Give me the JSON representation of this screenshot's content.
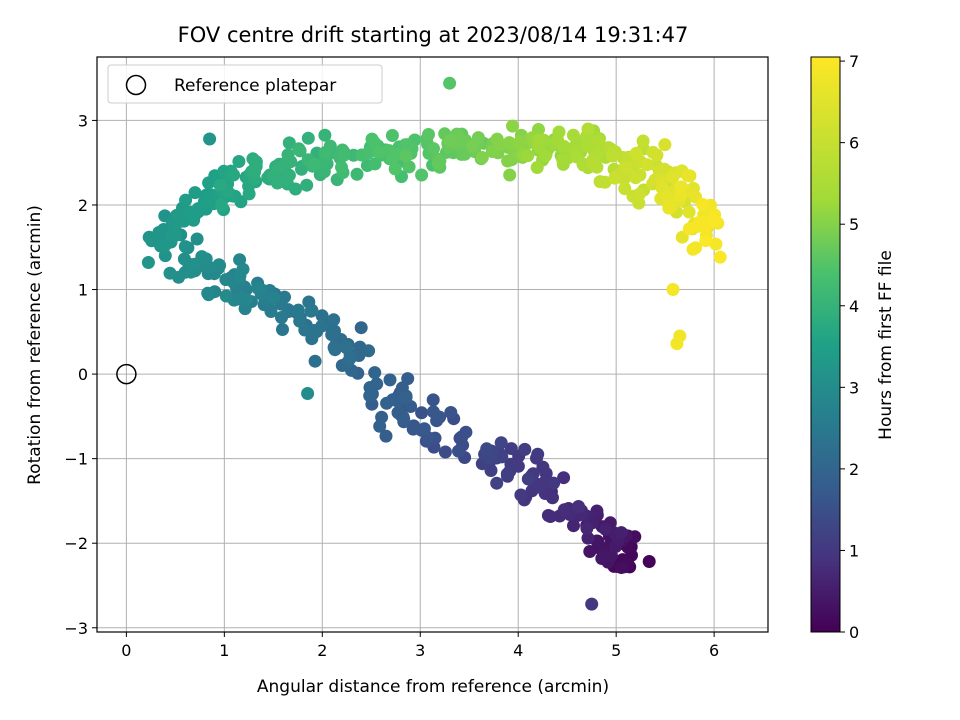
{
  "chart_data": {
    "type": "scatter",
    "title": "FOV centre drift starting at 2023/08/14 19:31:47",
    "xlabel": "Angular distance from reference (arcmin)",
    "ylabel": "Rotation from reference (arcmin)",
    "xlim": [
      -0.3,
      6.55
    ],
    "ylim": [
      -3.05,
      3.75
    ],
    "xticks": [
      0,
      1,
      2,
      3,
      4,
      5,
      6
    ],
    "yticks": [
      -3,
      -2,
      -1,
      0,
      1,
      2,
      3
    ],
    "xtick_labels": [
      "0",
      "1",
      "2",
      "3",
      "4",
      "5",
      "6"
    ],
    "ytick_labels": [
      "−3",
      "−2",
      "−1",
      "0",
      "1",
      "2",
      "3"
    ],
    "grid": true,
    "colormap": "viridis",
    "colorbar": {
      "label": "Hours from first FF file",
      "range": [
        0,
        7.05
      ],
      "ticks": [
        0,
        1,
        2,
        3,
        4,
        5,
        6,
        7
      ],
      "tick_labels": [
        "0",
        "1",
        "2",
        "3",
        "4",
        "5",
        "6",
        "7"
      ]
    },
    "legend": {
      "position": "top-left",
      "entries": [
        "Reference platepar"
      ]
    },
    "reference_point": {
      "x": 0,
      "y": 0
    },
    "series": [
      {
        "segments": [
          {
            "t0": 0.0,
            "t1": 0.55,
            "x0": 5.2,
            "y0": -2.3,
            "x1": 4.8,
            "y1": -1.8,
            "n": 40,
            "sx": 0.22,
            "sy": 0.25
          },
          {
            "t0": 0.55,
            "t1": 1.2,
            "x0": 4.8,
            "y0": -1.8,
            "x1": 3.8,
            "y1": -1.0,
            "n": 55,
            "sx": 0.22,
            "sy": 0.25
          },
          {
            "t0": 1.2,
            "t1": 1.8,
            "x0": 3.8,
            "y0": -1.0,
            "x1": 2.8,
            "y1": -0.4,
            "n": 40,
            "sx": 0.2,
            "sy": 0.25
          },
          {
            "t0": 1.8,
            "t1": 2.3,
            "x0": 2.8,
            "y0": -0.4,
            "x1": 2.0,
            "y1": 0.5,
            "n": 40,
            "sx": 0.22,
            "sy": 0.25
          },
          {
            "t0": 2.3,
            "t1": 2.8,
            "x0": 2.0,
            "y0": 0.5,
            "x1": 1.1,
            "y1": 1.1,
            "n": 45,
            "sx": 0.22,
            "sy": 0.2
          },
          {
            "t0": 2.8,
            "t1": 3.2,
            "x0": 1.1,
            "y0": 1.1,
            "x1": 0.35,
            "y1": 1.6,
            "n": 45,
            "sx": 0.15,
            "sy": 0.25
          },
          {
            "t0": 3.2,
            "t1": 3.5,
            "x0": 0.35,
            "y0": 1.6,
            "x1": 0.9,
            "y1": 2.2,
            "n": 35,
            "sx": 0.15,
            "sy": 0.2
          },
          {
            "t0": 3.5,
            "t1": 4.1,
            "x0": 0.9,
            "y0": 2.2,
            "x1": 2.0,
            "y1": 2.5,
            "n": 80,
            "sx": 0.25,
            "sy": 0.22
          },
          {
            "t0": 4.1,
            "t1": 4.7,
            "x0": 2.0,
            "y0": 2.5,
            "x1": 3.4,
            "y1": 2.7,
            "n": 70,
            "sx": 0.25,
            "sy": 0.22
          },
          {
            "t0": 4.7,
            "t1": 5.4,
            "x0": 3.4,
            "y0": 2.7,
            "x1": 4.6,
            "y1": 2.7,
            "n": 80,
            "sx": 0.25,
            "sy": 0.22
          },
          {
            "t0": 5.4,
            "t1": 6.3,
            "x0": 4.6,
            "y0": 2.7,
            "x1": 5.5,
            "y1": 2.3,
            "n": 75,
            "sx": 0.22,
            "sy": 0.25
          },
          {
            "t0": 6.3,
            "t1": 7.0,
            "x0": 5.5,
            "y0": 2.3,
            "x1": 5.9,
            "y1": 1.6,
            "n": 50,
            "sx": 0.18,
            "sy": 0.35
          }
        ],
        "outliers": [
          {
            "t": 6.8,
            "x": 5.65,
            "y": 0.45
          },
          {
            "t": 6.85,
            "x": 5.62,
            "y": 0.36
          },
          {
            "t": 6.9,
            "x": 5.58,
            "y": 1.0
          },
          {
            "t": 3.0,
            "x": 1.85,
            "y": -0.23
          },
          {
            "t": 1.0,
            "x": 4.75,
            "y": -2.72
          },
          {
            "t": 3.2,
            "x": 0.85,
            "y": 2.78
          },
          {
            "t": 4.5,
            "x": 3.3,
            "y": 3.44
          }
        ]
      }
    ]
  }
}
